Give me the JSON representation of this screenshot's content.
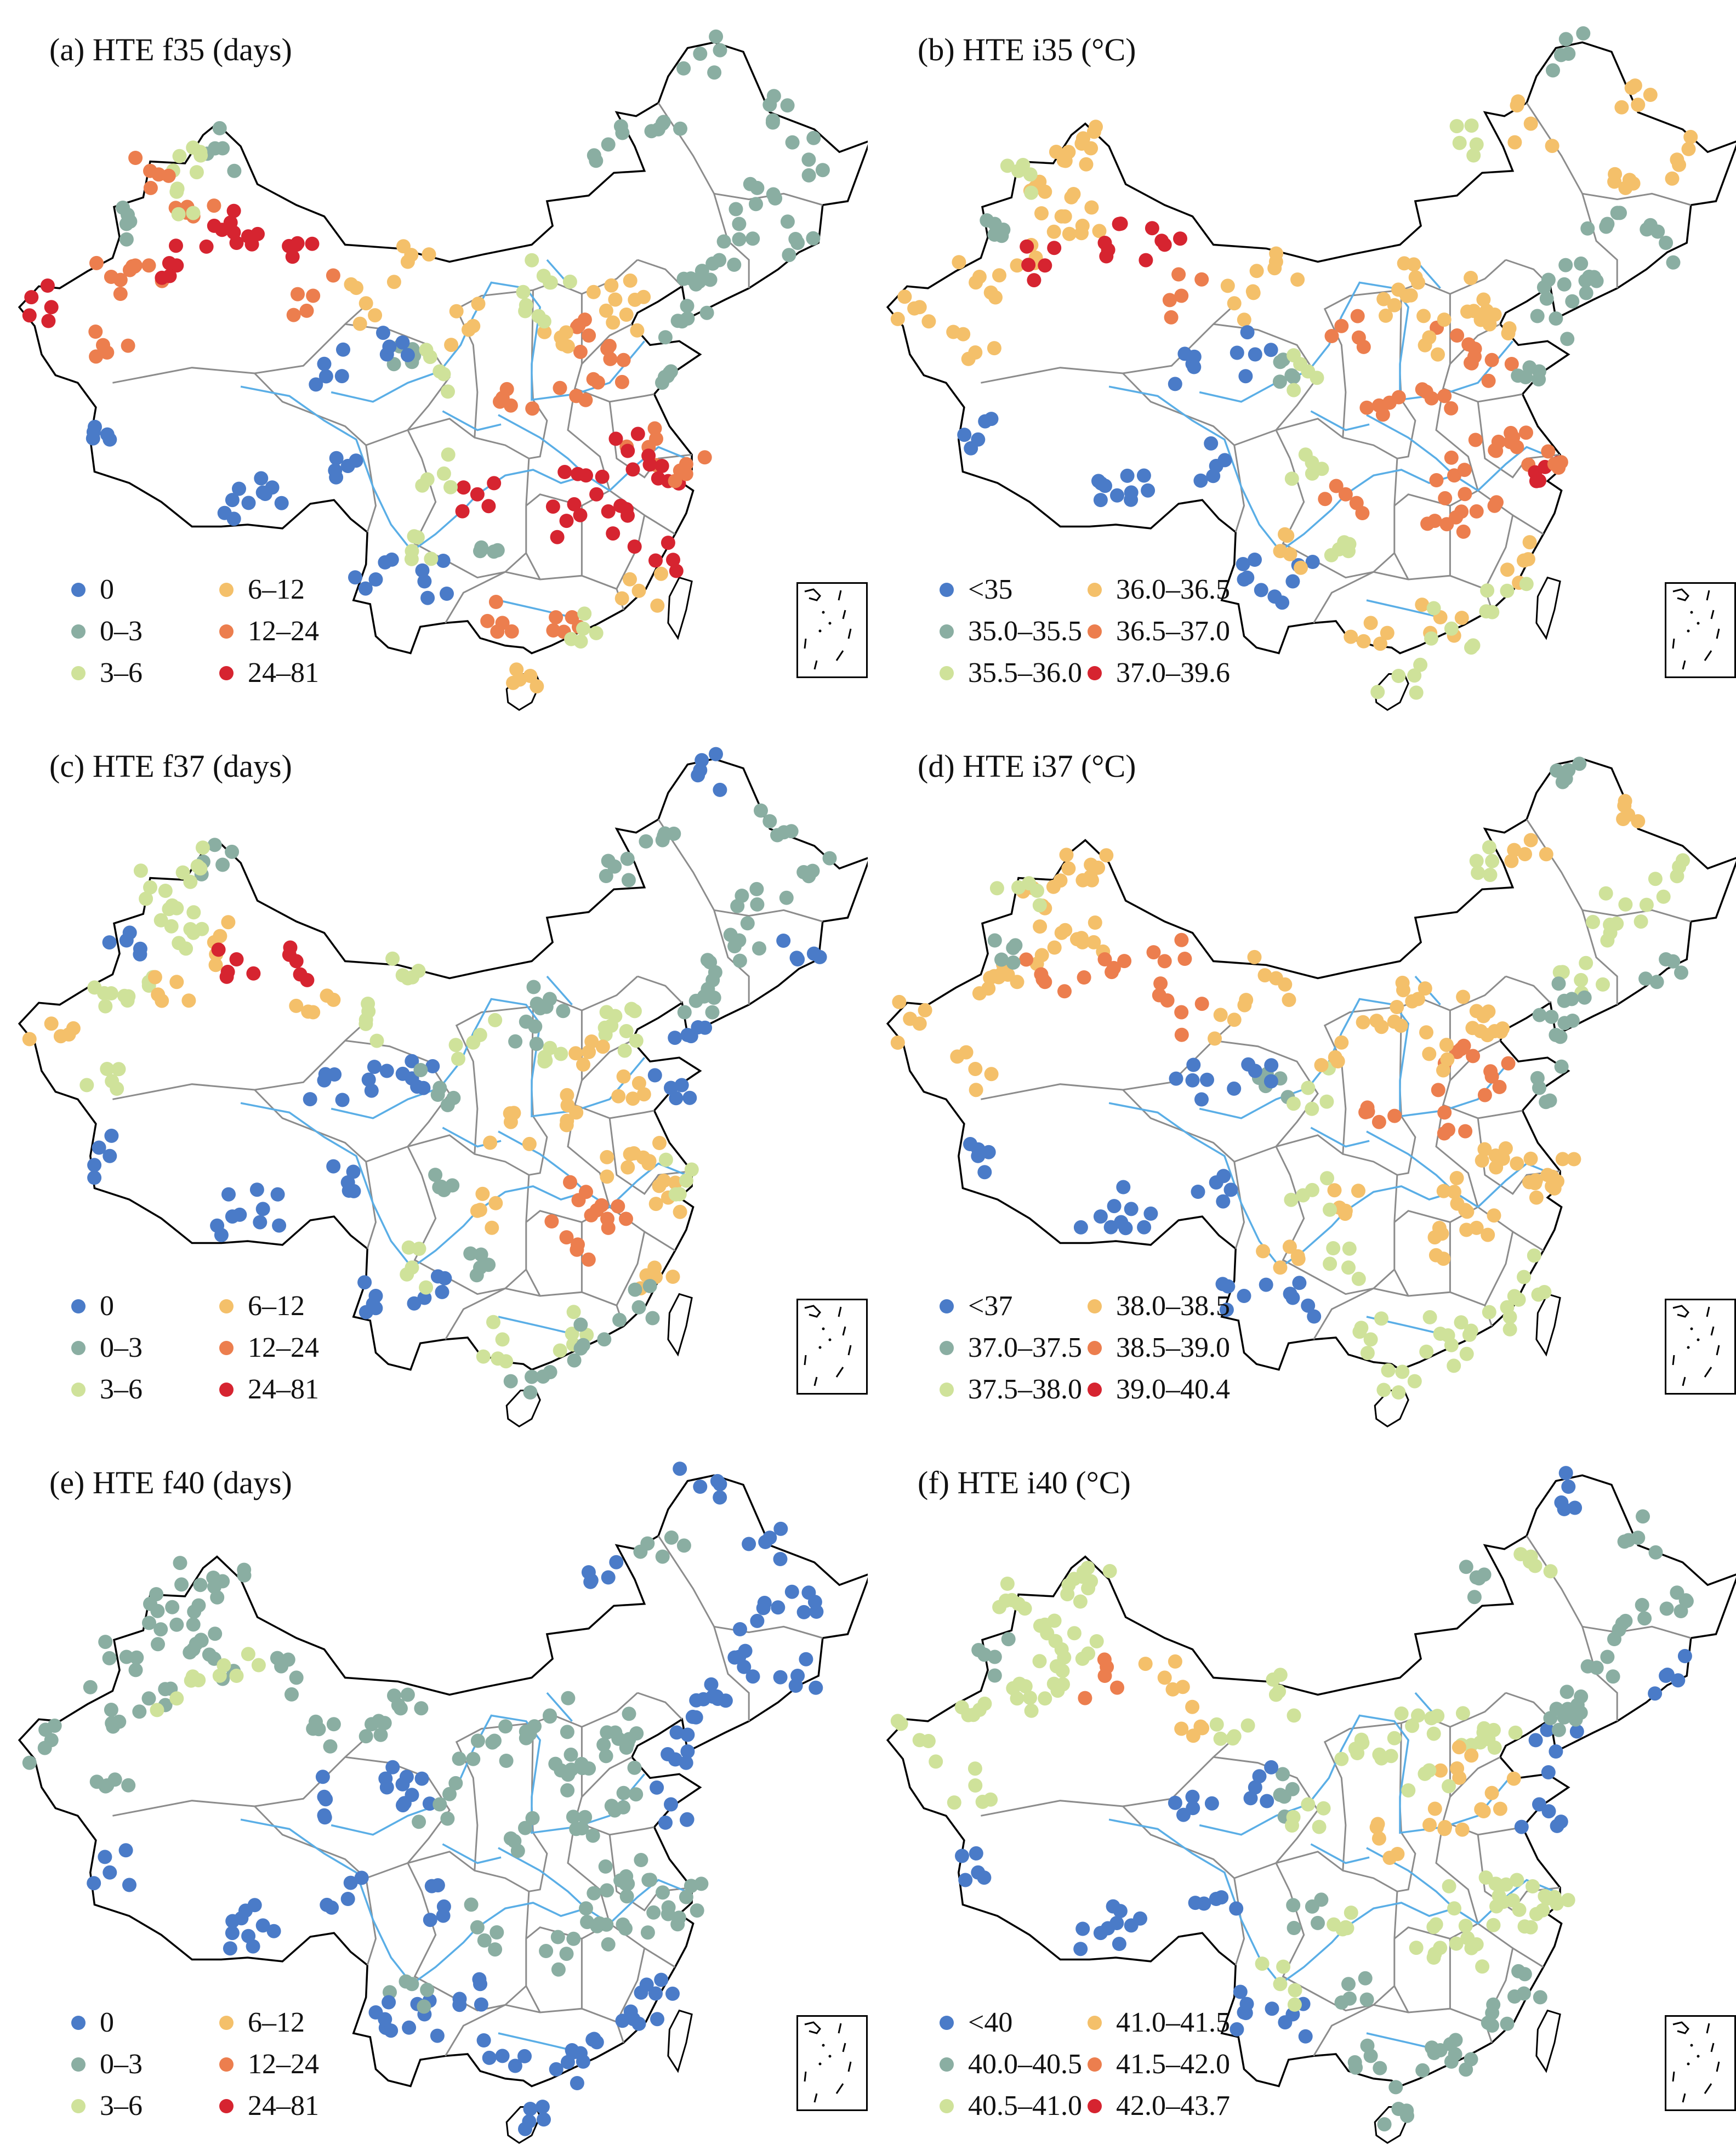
{
  "colors": {
    "outline": "#000000",
    "province_border": "#8c8c8c",
    "river": "#5aaee6",
    "class_colors": [
      "#4a7bc8",
      "#8aaea2",
      "#cfe29a",
      "#f4c06a",
      "#ec7e4e",
      "#d62430"
    ]
  },
  "panels": [
    {
      "title": "(a) HTE f35 (days)",
      "legend": [
        "0",
        "0–3",
        "3–6",
        "6–12",
        "12–24",
        "24–81"
      ],
      "pattern": "freq35"
    },
    {
      "title": "(b) HTE i35 (°C)",
      "legend": [
        "<35",
        "35.0–35.5",
        "35.5–36.0",
        "36.0–36.5",
        "36.5–37.0",
        "37.0–39.6"
      ],
      "pattern": "int35"
    },
    {
      "title": "(c) HTE f37 (days)",
      "legend": [
        "0",
        "0–3",
        "3–6",
        "6–12",
        "12–24",
        "24–81"
      ],
      "pattern": "freq37"
    },
    {
      "title": "(d) HTE i37 (°C)",
      "legend": [
        "<37",
        "37.0–37.5",
        "37.5–38.0",
        "38.0–38.5",
        "38.5–39.0",
        "39.0–40.4"
      ],
      "pattern": "int37"
    },
    {
      "title": "(e) HTE f40 (days)",
      "legend": [
        "0",
        "0–3",
        "3–6",
        "6–12",
        "12–24",
        "24–81"
      ],
      "pattern": "freq40"
    },
    {
      "title": "(f) HTE i40 (°C)",
      "legend": [
        "<40",
        "40.0–40.5",
        "40.5–41.0",
        "41.0–41.5",
        "41.5–42.0",
        "42.0–43.7"
      ],
      "pattern": "int40"
    }
  ],
  "stations": [
    {
      "lon": 75.9,
      "lat": 39.5,
      "c": [
        5,
        3,
        3,
        3,
        1,
        2
      ]
    },
    {
      "lon": 79.9,
      "lat": 37.1,
      "c": [
        4,
        3,
        2,
        3,
        1,
        2
      ]
    },
    {
      "lon": 82.9,
      "lat": 41.7,
      "c": [
        4,
        3,
        2,
        3,
        1,
        2
      ]
    },
    {
      "lon": 84.9,
      "lat": 41.7,
      "c": [
        5,
        5,
        3,
        4,
        2,
        2
      ]
    },
    {
      "lon": 87.6,
      "lat": 43.8,
      "c": [
        5,
        3,
        3,
        3,
        1,
        2
      ]
    },
    {
      "lon": 89.2,
      "lat": 42.9,
      "c": [
        5,
        5,
        5,
        4,
        2,
        4
      ]
    },
    {
      "lon": 93.5,
      "lat": 42.8,
      "c": [
        5,
        5,
        5,
        4,
        1,
        3
      ]
    },
    {
      "lon": 86.1,
      "lat": 44.3,
      "c": [
        4,
        3,
        2,
        3,
        1,
        2
      ]
    },
    {
      "lon": 84.9,
      "lat": 45.6,
      "c": [
        2,
        3,
        2,
        3,
        1,
        2
      ]
    },
    {
      "lon": 80.2,
      "lat": 41.1,
      "c": [
        4,
        3,
        2,
        3,
        1,
        2
      ]
    },
    {
      "lon": 81.3,
      "lat": 43.9,
      "c": [
        1,
        1,
        0,
        1,
        1,
        1
      ]
    },
    {
      "lon": 88.2,
      "lat": 47.9,
      "c": [
        1,
        3,
        1,
        3,
        1,
        2
      ]
    },
    {
      "lon": 86.6,
      "lat": 47.7,
      "c": [
        2,
        3,
        2,
        3,
        1,
        2
      ]
    },
    {
      "lon": 83.0,
      "lat": 46.7,
      "c": [
        4,
        2,
        2,
        2,
        1,
        2
      ]
    },
    {
      "lon": 94.7,
      "lat": 40.1,
      "c": [
        4,
        4,
        3,
        4,
        1,
        3
      ]
    },
    {
      "lon": 98.5,
      "lat": 39.7,
      "c": [
        3,
        3,
        2,
        3,
        1,
        2
      ]
    },
    {
      "lon": 101.8,
      "lat": 36.6,
      "c": [
        1,
        1,
        0,
        1,
        0,
        1
      ]
    },
    {
      "lon": 103.8,
      "lat": 36.1,
      "c": [
        2,
        2,
        1,
        2,
        1,
        2
      ]
    },
    {
      "lon": 106.2,
      "lat": 38.5,
      "c": [
        3,
        4,
        2,
        3,
        1,
        2
      ]
    },
    {
      "lon": 111.7,
      "lat": 40.8,
      "c": [
        2,
        3,
        1,
        3,
        1,
        2
      ]
    },
    {
      "lon": 116.4,
      "lat": 39.9,
      "c": [
        3,
        3,
        2,
        3,
        1,
        2
      ]
    },
    {
      "lon": 117.2,
      "lat": 39.1,
      "c": [
        3,
        3,
        2,
        3,
        1,
        2
      ]
    },
    {
      "lon": 114.5,
      "lat": 38.0,
      "c": [
        4,
        4,
        3,
        4,
        1,
        3
      ]
    },
    {
      "lon": 112.5,
      "lat": 37.9,
      "c": [
        3,
        3,
        2,
        3,
        1,
        2
      ]
    },
    {
      "lon": 113.6,
      "lat": 34.8,
      "c": [
        4,
        4,
        3,
        4,
        1,
        3
      ]
    },
    {
      "lon": 117.0,
      "lat": 36.7,
      "c": [
        4,
        4,
        3,
        4,
        1,
        3
      ]
    },
    {
      "lon": 118.8,
      "lat": 32.1,
      "c": [
        4,
        4,
        3,
        3,
        1,
        2
      ]
    },
    {
      "lon": 120.2,
      "lat": 30.3,
      "c": [
        5,
        5,
        3,
        3,
        1,
        2
      ]
    },
    {
      "lon": 121.5,
      "lat": 31.2,
      "c": [
        4,
        4,
        2,
        3,
        1,
        2
      ]
    },
    {
      "lon": 117.3,
      "lat": 31.9,
      "c": [
        5,
        4,
        3,
        3,
        1,
        2
      ]
    },
    {
      "lon": 115.9,
      "lat": 28.7,
      "c": [
        5,
        4,
        4,
        3,
        1,
        2
      ]
    },
    {
      "lon": 114.3,
      "lat": 30.6,
      "c": [
        5,
        4,
        4,
        3,
        1,
        2
      ]
    },
    {
      "lon": 112.9,
      "lat": 28.2,
      "c": [
        5,
        4,
        4,
        3,
        1,
        2
      ]
    },
    {
      "lon": 119.3,
      "lat": 26.1,
      "c": [
        5,
        3,
        3,
        2,
        0,
        1
      ]
    },
    {
      "lon": 113.3,
      "lat": 23.1,
      "c": [
        4,
        3,
        2,
        2,
        0,
        1
      ]
    },
    {
      "lon": 108.3,
      "lat": 22.8,
      "c": [
        4,
        3,
        2,
        2,
        0,
        1
      ]
    },
    {
      "lon": 110.3,
      "lat": 20.0,
      "c": [
        3,
        2,
        1,
        2,
        0,
        1
      ]
    },
    {
      "lon": 106.5,
      "lat": 29.6,
      "c": [
        5,
        4,
        3,
        3,
        1,
        2
      ]
    },
    {
      "lon": 104.1,
      "lat": 30.7,
      "c": [
        2,
        2,
        1,
        2,
        0,
        1
      ]
    },
    {
      "lon": 106.7,
      "lat": 26.6,
      "c": [
        1,
        2,
        1,
        2,
        0,
        1
      ]
    },
    {
      "lon": 102.7,
      "lat": 25.0,
      "c": [
        0,
        0,
        0,
        0,
        0,
        0
      ]
    },
    {
      "lon": 108.9,
      "lat": 34.3,
      "c": [
        4,
        4,
        3,
        4,
        1,
        3
      ]
    },
    {
      "lon": 123.4,
      "lat": 41.8,
      "c": [
        1,
        1,
        1,
        2,
        0,
        1
      ]
    },
    {
      "lon": 125.3,
      "lat": 43.9,
      "c": [
        1,
        1,
        1,
        2,
        0,
        1
      ]
    },
    {
      "lon": 126.6,
      "lat": 45.8,
      "c": [
        1,
        3,
        1,
        2,
        0,
        1
      ]
    },
    {
      "lon": 121.6,
      "lat": 38.9,
      "c": [
        1,
        1,
        0,
        1,
        0,
        0
      ]
    },
    {
      "lon": 120.4,
      "lat": 36.1,
      "c": [
        1,
        1,
        0,
        1,
        0,
        0
      ]
    },
    {
      "lon": 91.1,
      "lat": 29.7,
      "c": [
        0,
        0,
        0,
        0,
        0,
        0
      ]
    },
    {
      "lon": 97.2,
      "lat": 31.1,
      "c": [
        0,
        0,
        0,
        0,
        0,
        0
      ]
    },
    {
      "lon": 101.8,
      "lat": 26.6,
      "c": [
        2,
        3,
        2,
        3,
        1,
        2
      ]
    },
    {
      "lon": 99.2,
      "lat": 25.1,
      "c": [
        0,
        0,
        0,
        0,
        0,
        0
      ]
    },
    {
      "lon": 88.9,
      "lat": 29.3,
      "c": [
        0,
        0,
        0,
        0,
        0,
        0
      ]
    },
    {
      "lon": 80.1,
      "lat": 32.5,
      "c": [
        0,
        0,
        0,
        0,
        0,
        0
      ]
    },
    {
      "lon": 100.0,
      "lat": 37.0,
      "c": [
        0,
        0,
        0,
        0,
        0,
        0
      ]
    },
    {
      "lon": 95.5,
      "lat": 36.5,
      "c": [
        0,
        0,
        0,
        0,
        0,
        0
      ]
    },
    {
      "lon": 118.1,
      "lat": 24.5,
      "c": [
        3,
        2,
        1,
        2,
        0,
        1
      ]
    },
    {
      "lon": 114.1,
      "lat": 22.5,
      "c": [
        2,
        2,
        1,
        2,
        0,
        1
      ]
    },
    {
      "lon": 122.2,
      "lat": 40.7,
      "c": [
        1,
        1,
        1,
        1,
        0,
        1
      ]
    },
    {
      "lon": 129.5,
      "lat": 42.9,
      "c": [
        1,
        1,
        0,
        1,
        0,
        0
      ]
    },
    {
      "lon": 130.3,
      "lat": 47.3,
      "c": [
        1,
        3,
        1,
        2,
        0,
        1
      ]
    },
    {
      "lon": 127.5,
      "lat": 50.2,
      "c": [
        1,
        3,
        1,
        3,
        0,
        1
      ]
    },
    {
      "lon": 122.5,
      "lat": 52.9,
      "c": [
        1,
        1,
        0,
        1,
        0,
        0
      ]
    },
    {
      "lon": 119.8,
      "lat": 49.2,
      "c": [
        1,
        3,
        1,
        3,
        1,
        2
      ]
    },
    {
      "lon": 115.9,
      "lat": 48.1,
      "c": [
        1,
        2,
        1,
        2,
        0,
        1
      ]
    },
    {
      "lon": 110.0,
      "lat": 39.6,
      "c": [
        2,
        3,
        1,
        3,
        1,
        2
      ]
    },
    {
      "lon": 101.5,
      "lat": 41.9,
      "c": [
        3,
        3,
        2,
        3,
        1,
        2
      ]
    }
  ],
  "inset_label": "South China Sea islands"
}
